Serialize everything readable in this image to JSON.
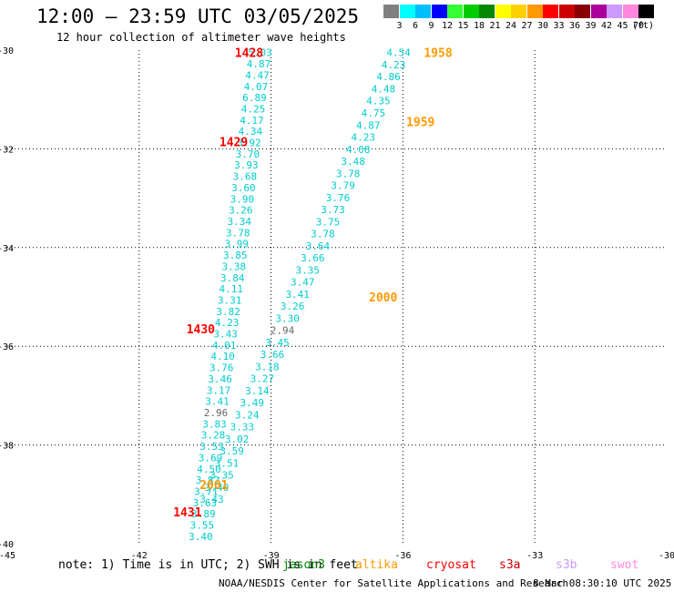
{
  "header": {
    "title": "12:00 – 23:59 UTC 03/05/2025",
    "subtitle": "12 hour collection of altimeter wave heights"
  },
  "legend": {
    "unit": "(ft)",
    "items": [
      {
        "label": "3",
        "color": "#808080"
      },
      {
        "label": "6",
        "color": "#00ffff"
      },
      {
        "label": "9",
        "color": "#00bfff"
      },
      {
        "label": "12",
        "color": "#0000ff"
      },
      {
        "label": "15",
        "color": "#33ff33"
      },
      {
        "label": "18",
        "color": "#00cc00"
      },
      {
        "label": "21",
        "color": "#008800"
      },
      {
        "label": "24",
        "color": "#ffff00"
      },
      {
        "label": "27",
        "color": "#ffd000"
      },
      {
        "label": "30",
        "color": "#ff9900"
      },
      {
        "label": "33",
        "color": "#ff0000"
      },
      {
        "label": "36",
        "color": "#cc0000"
      },
      {
        "label": "39",
        "color": "#880000"
      },
      {
        "label": "42",
        "color": "#aa0099"
      },
      {
        "label": "45",
        "color": "#cc99ff"
      },
      {
        "label": "70",
        "color": "#ff88dd"
      },
      {
        "label": "",
        "color": "#000000"
      }
    ]
  },
  "map": {
    "lon_ticks": [
      "-45",
      "-42",
      "-39",
      "-36",
      "-33",
      "-30"
    ],
    "lat_ticks": [
      "-30",
      "-32",
      "-34",
      "-36",
      "-38",
      "-40"
    ],
    "lon_range": [
      -45,
      -30
    ],
    "lat_range": [
      -40,
      -30
    ],
    "grid": true,
    "gridlines_lon": [
      -42,
      -39,
      -36,
      -33
    ],
    "gridlines_lat": [
      -32,
      -34,
      -36,
      -38
    ],
    "pass_labels": [
      {
        "text": "1428",
        "lon": -39.5,
        "lat": -30.05,
        "color": "#ff0000"
      },
      {
        "text": "1958",
        "lon": -35.2,
        "lat": -30.05,
        "color": "#ff9900"
      },
      {
        "text": "1959",
        "lon": -35.6,
        "lat": -31.45,
        "color": "#ff9900"
      },
      {
        "text": "1429",
        "lon": -39.85,
        "lat": -31.85,
        "color": "#ff0000"
      },
      {
        "text": "2000",
        "lon": -36.45,
        "lat": -35.0,
        "color": "#ff9900"
      },
      {
        "text": "1430",
        "lon": -40.6,
        "lat": -35.65,
        "color": "#ff0000"
      },
      {
        "text": "2001",
        "lon": -40.3,
        "lat": -38.8,
        "color": "#ff9900"
      },
      {
        "text": "1431",
        "lon": -40.9,
        "lat": -39.35,
        "color": "#ff0000"
      }
    ],
    "track_a": {
      "color": "#00cccc",
      "start": [
        -39.25,
        -30.05
      ],
      "end": [
        -40.6,
        -39.85
      ],
      "values": [
        "5.03",
        "4.87",
        "4.47",
        "4.07",
        "6.89",
        "4.25",
        "4.17",
        "4.34",
        "3.92",
        "3.70",
        "3.93",
        "3.68",
        "3.60",
        "3.90",
        "3.26",
        "3.34",
        "3.78",
        "3.99",
        "3.85",
        "3.38",
        "3.84",
        "4.11",
        "3.31",
        "3.82",
        "4.23",
        "3.43",
        "4.01",
        "4.10",
        "3.76",
        "3.46",
        "3.17",
        "3.41",
        "2.96",
        "3.83",
        "3.28",
        "3.53",
        "3.69",
        "4.50",
        "3.82",
        "3.71",
        "3.63",
        "3.89",
        "3.55",
        "3.40"
      ]
    },
    "track_b": {
      "color": "#00cccc",
      "start": [
        -36.1,
        -30.05
      ],
      "end": [
        -40.35,
        -39.1
      ],
      "values": [
        "4.54",
        "4.23",
        "4.86",
        "4.48",
        "4.35",
        "4.75",
        "4.87",
        "4.23",
        "4.08",
        "3.48",
        "3.78",
        "3.79",
        "3.76",
        "3.73",
        "3.75",
        "3.78",
        "3.64",
        "3.66",
        "3.35",
        "3.47",
        "3.41",
        "3.26",
        "3.30",
        "2.94",
        "3.45",
        "3.66",
        "3.18",
        "3.27",
        "3.14",
        "3.49",
        "3.24",
        "3.33",
        "3.02",
        "3.59",
        "3.51",
        "3.35",
        "3.40",
        "3.43"
      ]
    }
  },
  "footer": {
    "note": "note: 1) Time is in UTC; 2) SWH is in feet",
    "satellites": [
      {
        "name": "jason3",
        "color": "#008800"
      },
      {
        "name": "altika",
        "color": "#ff9900"
      },
      {
        "name": "cryosat",
        "color": "#ff0000"
      },
      {
        "name": "s3a",
        "color": "#cc0000"
      },
      {
        "name": "s3b",
        "color": "#cc99ff"
      },
      {
        "name": "swot",
        "color": "#ff88dd"
      }
    ],
    "credit": "NOAA/NESDIS Center for Satellite Applications and Research",
    "timestamp": "8 Mar 08:30:10 UTC 2025"
  }
}
